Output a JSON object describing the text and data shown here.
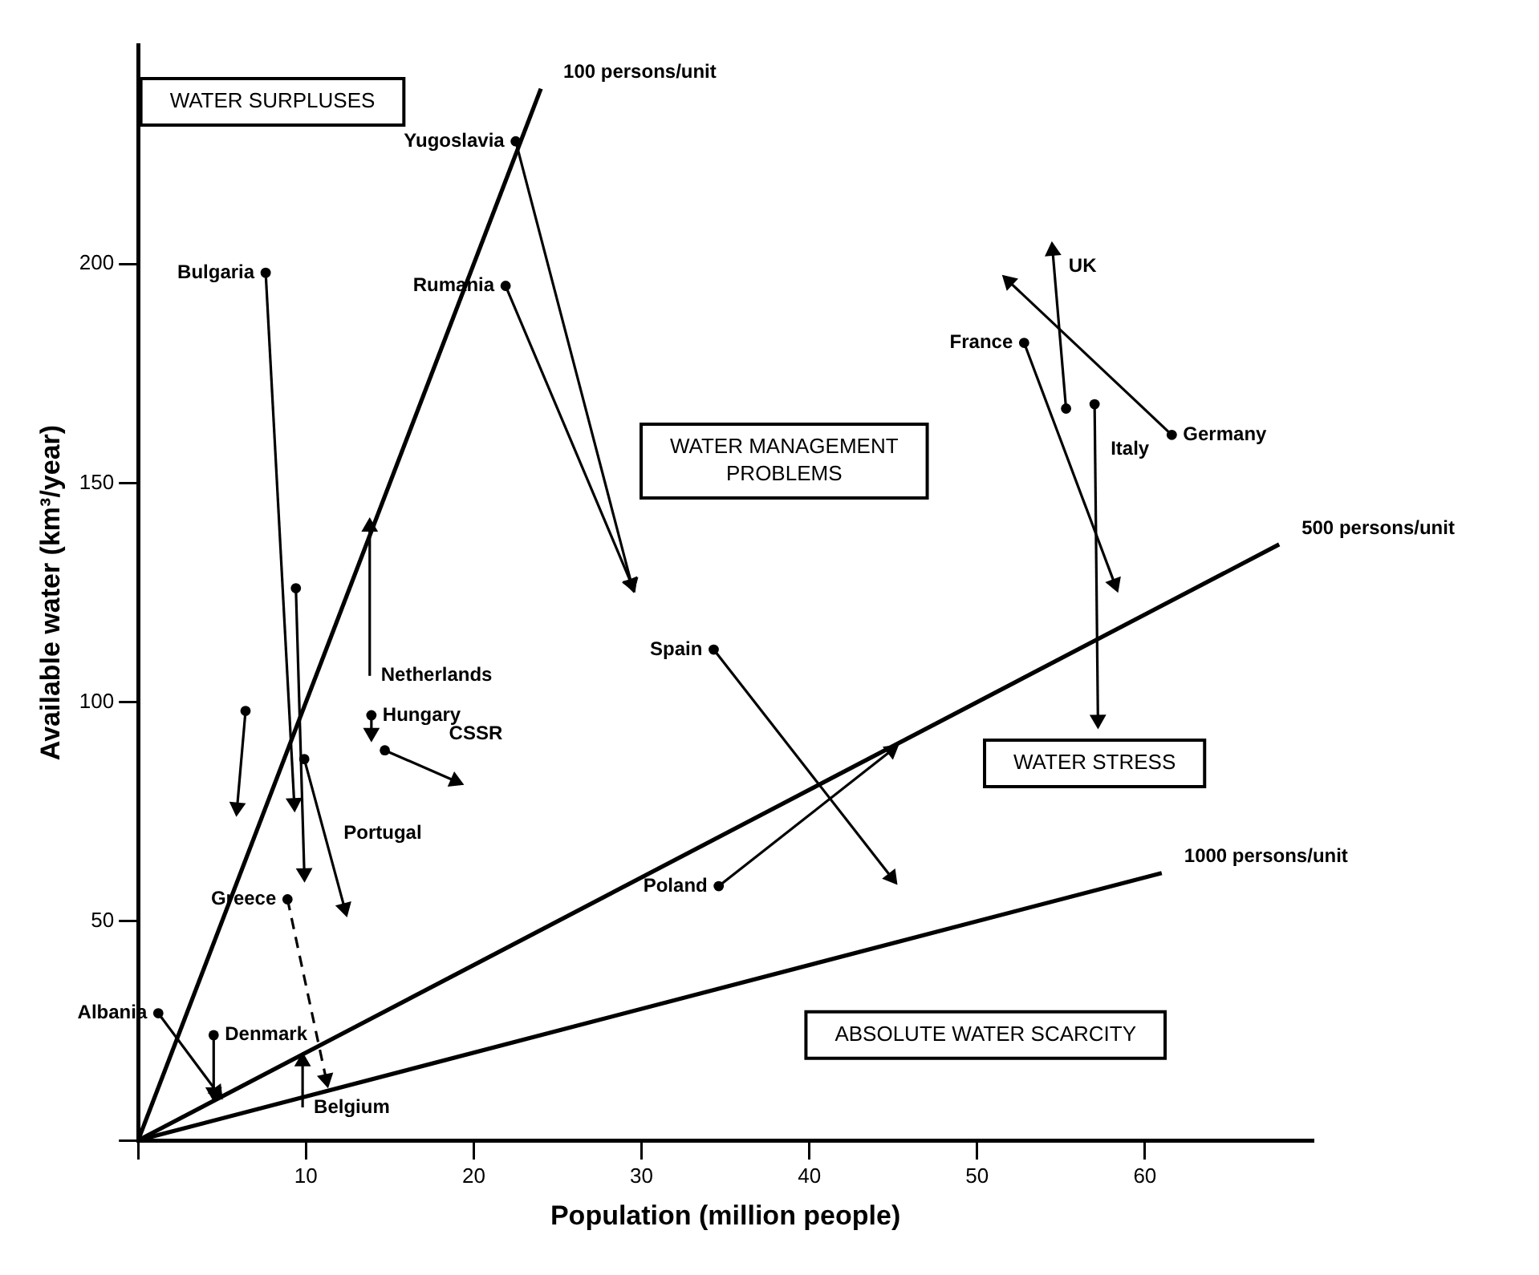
{
  "chart_data": {
    "type": "line",
    "xlabel": "Population (million people)",
    "ylabel": "Available water (km³/year)",
    "xlim": [
      0,
      70
    ],
    "ylim": [
      0,
      250
    ],
    "xticks": [
      {
        "value": 0,
        "label": null
      },
      10,
      20,
      30,
      40,
      50,
      60
    ],
    "yticks": [
      {
        "value": 0,
        "label": null
      },
      50,
      100,
      150,
      200
    ],
    "grid": false,
    "legend": false,
    "line_style": "solid",
    "annotations": [
      "WATER SURPLUSES",
      "WATER MANAGEMENT\nPROBLEMS",
      "WATER STRESS",
      "ABSOLUTE WATER SCARCITY"
    ],
    "series": [
      {
        "name": "100 persons/unit",
        "color": "#000000",
        "x": [
          0,
          24
        ],
        "values": [
          0,
          240
        ],
        "marker": "none"
      },
      {
        "name": "500 persons/unit",
        "color": "#000000",
        "x": [
          0,
          68
        ],
        "values": [
          0,
          136
        ],
        "marker": "none"
      },
      {
        "name": "1000 persons/unit",
        "color": "#000000",
        "x": [
          0,
          61
        ],
        "values": [
          0,
          61
        ],
        "marker": "none"
      },
      {
        "name": "Yugoslavia",
        "color": "#000000",
        "x": [
          22.5,
          29.4
        ],
        "values": [
          228,
          127
        ],
        "marker": "circle"
      },
      {
        "name": "Rumania",
        "color": "#000000",
        "x": [
          21.9,
          29.4
        ],
        "values": [
          195,
          127
        ],
        "marker": "circle"
      },
      {
        "name": "Bulgaria",
        "color": "#000000",
        "x": [
          7.6,
          9.3
        ],
        "values": [
          198,
          77
        ],
        "marker": "circle"
      },
      {
        "color": "#000000",
        "x": [
          9.4,
          9.9
        ],
        "values": [
          126,
          61
        ],
        "marker": "circle"
      },
      {
        "color": "#000000",
        "x": [
          6.4,
          5.9
        ],
        "values": [
          98,
          76
        ],
        "marker": "circle"
      },
      {
        "name": "Netherlands",
        "color": "#000000",
        "x": [
          13.8,
          13.8
        ],
        "values": [
          106,
          140
        ],
        "marker": "triangle"
      },
      {
        "name": "Hungary",
        "color": "#000000",
        "x": [
          13.9,
          13.9
        ],
        "values": [
          97,
          93
        ],
        "marker": "circle"
      },
      {
        "name": "CSSR",
        "color": "#000000",
        "x": [
          14.7,
          18.9
        ],
        "values": [
          89,
          82
        ],
        "marker": "circle"
      },
      {
        "name": "Portugal",
        "color": "#000000",
        "x": [
          9.9,
          12.3
        ],
        "values": [
          87,
          53
        ],
        "marker": "circle"
      },
      {
        "name": "Greece",
        "color": "#000000",
        "x": [
          8.9,
          11.2
        ],
        "values": [
          55,
          14
        ],
        "marker": "circle",
        "line_style": "dashed"
      },
      {
        "name": "Denmark",
        "color": "#000000",
        "x": [
          4.5,
          4.5
        ],
        "values": [
          24,
          11
        ],
        "marker": "circle"
      },
      {
        "name": "Albania",
        "color": "#000000",
        "x": [
          1.2,
          4.7
        ],
        "values": [
          29,
          11
        ],
        "marker": "circle"
      },
      {
        "name": "Belgium",
        "color": "#000000",
        "x": [
          9.8,
          9.8
        ],
        "values": [
          7.5,
          18
        ],
        "marker": "triangle"
      },
      {
        "name": "Spain",
        "color": "#000000",
        "x": [
          34.3,
          44.9
        ],
        "values": [
          112,
          60
        ],
        "marker": "circle"
      },
      {
        "name": "Poland",
        "color": "#000000",
        "x": [
          34.6,
          44.9
        ],
        "values": [
          58,
          89
        ],
        "marker": "circle"
      },
      {
        "name": "UK",
        "color": "#000000",
        "x": [
          55.3,
          54.5
        ],
        "values": [
          167,
          203
        ],
        "marker": "circle"
      },
      {
        "name": "Germany",
        "color": "#000000",
        "x": [
          61.6,
          51.9
        ],
        "values": [
          161,
          196
        ],
        "marker": "circle"
      },
      {
        "name": "France",
        "color": "#000000",
        "x": [
          52.8,
          58.2
        ],
        "values": [
          182,
          127
        ],
        "marker": "circle"
      },
      {
        "name": "Italy",
        "color": "#000000",
        "x": [
          57,
          57.2
        ],
        "values": [
          168,
          96
        ],
        "marker": "circle"
      }
    ]
  }
}
